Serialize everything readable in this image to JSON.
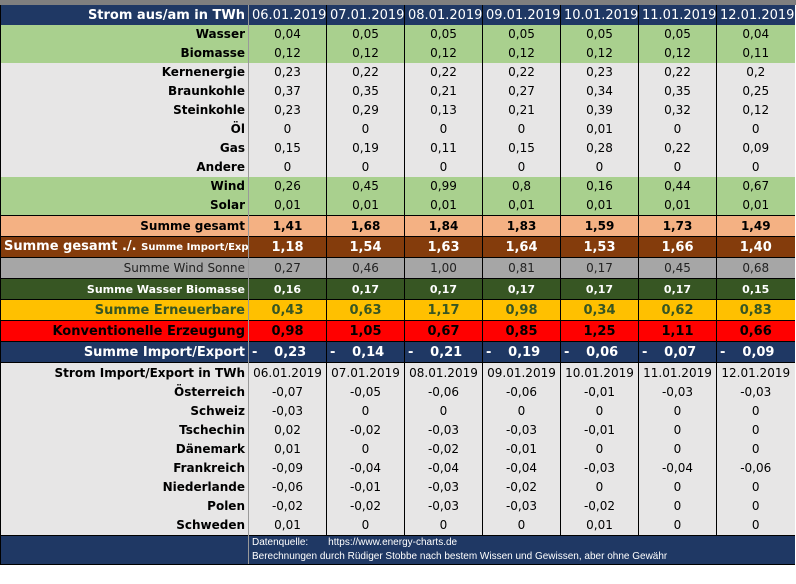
{
  "header": {
    "title": "Strom aus/am in TWh",
    "dates": [
      "06.01.2019",
      "07.01.2019",
      "08.01.2019",
      "09.01.2019",
      "10.01.2019",
      "11.01.2019",
      "12.01.2019"
    ]
  },
  "production": [
    {
      "label": "Wasser",
      "style": "green",
      "values": [
        "0,04",
        "0,05",
        "0,05",
        "0,05",
        "0,05",
        "0,05",
        "0,04"
      ]
    },
    {
      "label": "Biomasse",
      "style": "green",
      "values": [
        "0,12",
        "0,12",
        "0,12",
        "0,12",
        "0,12",
        "0,12",
        "0,11"
      ]
    },
    {
      "label": "Kernenergie",
      "style": "grey",
      "values": [
        "0,23",
        "0,22",
        "0,22",
        "0,22",
        "0,23",
        "0,22",
        "0,2"
      ]
    },
    {
      "label": "Braunkohle",
      "style": "grey",
      "values": [
        "0,37",
        "0,35",
        "0,21",
        "0,27",
        "0,34",
        "0,35",
        "0,25"
      ]
    },
    {
      "label": "Steinkohle",
      "style": "grey",
      "values": [
        "0,23",
        "0,29",
        "0,13",
        "0,21",
        "0,39",
        "0,32",
        "0,12"
      ]
    },
    {
      "label": "Öl",
      "style": "grey",
      "values": [
        "0",
        "0",
        "0",
        "0",
        "0,01",
        "0",
        "0"
      ]
    },
    {
      "label": "Gas",
      "style": "grey",
      "values": [
        "0,15",
        "0,19",
        "0,11",
        "0,15",
        "0,28",
        "0,22",
        "0,09"
      ]
    },
    {
      "label": "Andere",
      "style": "grey",
      "values": [
        "0",
        "0",
        "0",
        "0",
        "0",
        "0",
        "0"
      ]
    },
    {
      "label": "Wind",
      "style": "green",
      "values": [
        "0,26",
        "0,45",
        "0,99",
        "0,8",
        "0,16",
        "0,44",
        "0,67"
      ]
    },
    {
      "label": "Solar",
      "style": "green",
      "values": [
        "0,01",
        "0,01",
        "0,01",
        "0,01",
        "0,01",
        "0,01",
        "0,01"
      ]
    }
  ],
  "sums": {
    "gesamt": {
      "label": "Summe gesamt",
      "values": [
        "1,41",
        "1,68",
        "1,84",
        "1,83",
        "1,59",
        "1,73",
        "1,49"
      ]
    },
    "netto": {
      "label": "Summe gesamt ./.",
      "label_small": "Summe Import/Export",
      "values": [
        "1,18",
        "1,54",
        "1,63",
        "1,64",
        "1,53",
        "1,66",
        "1,40"
      ]
    },
    "wind_sonne": {
      "label": "Summe Wind Sonne",
      "values": [
        "0,27",
        "0,46",
        "1,00",
        "0,81",
        "0,17",
        "0,45",
        "0,68"
      ]
    },
    "wasser_biomasse": {
      "label": "Summe Wasser Biomasse",
      "values": [
        "0,16",
        "0,17",
        "0,17",
        "0,17",
        "0,17",
        "0,17",
        "0,15"
      ]
    },
    "erneuerbare": {
      "label": "Summe Erneuerbare",
      "values": [
        "0,43",
        "0,63",
        "1,17",
        "0,98",
        "0,34",
        "0,62",
        "0,83"
      ]
    },
    "konventionell": {
      "label": "Konventionelle Erzeugung",
      "values": [
        "0,98",
        "1,05",
        "0,67",
        "0,85",
        "1,25",
        "1,11",
        "0,66"
      ]
    },
    "import_export": {
      "label": "Summe Import/Export",
      "sign": "-",
      "values": [
        "0,23",
        "0,14",
        "0,21",
        "0,19",
        "0,06",
        "0,07",
        "0,09"
      ]
    }
  },
  "import_header": {
    "title": "Strom Import/Export in TWh",
    "dates": [
      "06.01.2019",
      "07.01.2019",
      "08.01.2019",
      "09.01.2019",
      "10.01.2019",
      "11.01.2019",
      "12.01.2019"
    ]
  },
  "countries": [
    {
      "label": "Österreich",
      "values": [
        "-0,07",
        "-0,05",
        "-0,06",
        "-0,06",
        "-0,01",
        "-0,03",
        "-0,03"
      ]
    },
    {
      "label": "Schweiz",
      "values": [
        "-0,03",
        "0",
        "0",
        "0",
        "0",
        "0",
        "0"
      ]
    },
    {
      "label": "Tschechin",
      "values": [
        "0,02",
        "-0,02",
        "-0,03",
        "-0,03",
        "-0,01",
        "0",
        "0"
      ]
    },
    {
      "label": "Dänemark",
      "values": [
        "0,01",
        "0",
        "-0,02",
        "-0,01",
        "0",
        "0",
        "0"
      ]
    },
    {
      "label": "Frankreich",
      "values": [
        "-0,09",
        "-0,04",
        "-0,04",
        "-0,04",
        "-0,03",
        "-0,04",
        "-0,06"
      ]
    },
    {
      "label": "Niederlande",
      "values": [
        "-0,06",
        "-0,01",
        "-0,03",
        "-0,02",
        "0",
        "0",
        "0"
      ]
    },
    {
      "label": "Polen",
      "values": [
        "-0,02",
        "-0,02",
        "-0,03",
        "-0,03",
        "-0,02",
        "0",
        "0"
      ]
    },
    {
      "label": "Schweden",
      "values": [
        "0,01",
        "0",
        "0",
        "0",
        "0,01",
        "0",
        "0"
      ]
    }
  ],
  "footer": {
    "source_label": "Datenquelle:",
    "source_link": "https://www.energy-charts.de",
    "disclaimer": "Berechnungen durch Rüdiger Stobbe nach bestem Wissen und Gewissen, aber ohne Gewähr"
  }
}
